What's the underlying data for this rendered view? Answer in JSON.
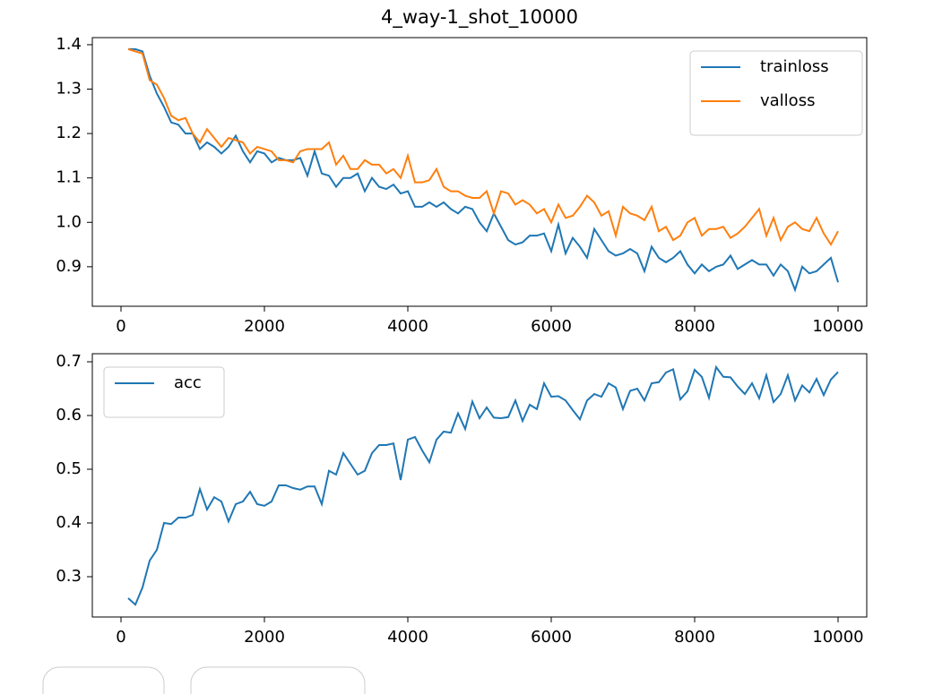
{
  "chart_data": [
    {
      "type": "line",
      "title": "4_way-1_shot_10000",
      "x": [
        100,
        200,
        300,
        400,
        500,
        600,
        700,
        800,
        900,
        1000,
        1100,
        1200,
        1300,
        1400,
        1500,
        1600,
        1700,
        1800,
        1900,
        2000,
        2100,
        2200,
        2300,
        2400,
        2500,
        2600,
        2700,
        2800,
        2900,
        3000,
        3100,
        3200,
        3300,
        3400,
        3500,
        3600,
        3700,
        3800,
        3900,
        4000,
        4100,
        4200,
        4300,
        4400,
        4500,
        4600,
        4700,
        4800,
        4900,
        5000,
        5100,
        5200,
        5300,
        5400,
        5500,
        5600,
        5700,
        5800,
        5900,
        6000,
        6100,
        6200,
        6300,
        6400,
        6500,
        6600,
        6700,
        6800,
        6900,
        7000,
        7100,
        7200,
        7300,
        7400,
        7500,
        7600,
        7700,
        7800,
        7900,
        8000,
        8100,
        8200,
        8300,
        8400,
        8500,
        8600,
        8700,
        8800,
        8900,
        9000,
        9100,
        9200,
        9300,
        9400,
        9500,
        9600,
        9700,
        9800,
        9900,
        10000
      ],
      "series": [
        {
          "name": "trainloss",
          "color": "#1f77b4",
          "values": [
            1.39,
            1.39,
            1.385,
            1.33,
            1.29,
            1.26,
            1.225,
            1.22,
            1.2,
            1.2,
            1.165,
            1.18,
            1.17,
            1.155,
            1.17,
            1.195,
            1.16,
            1.135,
            1.16,
            1.155,
            1.135,
            1.145,
            1.14,
            1.14,
            1.145,
            1.105,
            1.16,
            1.11,
            1.105,
            1.08,
            1.1,
            1.1,
            1.11,
            1.07,
            1.1,
            1.08,
            1.075,
            1.085,
            1.065,
            1.07,
            1.035,
            1.035,
            1.045,
            1.035,
            1.045,
            1.03,
            1.02,
            1.035,
            1.03,
            1.0,
            0.98,
            1.02,
            0.99,
            0.96,
            0.95,
            0.955,
            0.97,
            0.97,
            0.975,
            0.935,
            0.995,
            0.93,
            0.965,
            0.945,
            0.92,
            0.985,
            0.96,
            0.935,
            0.925,
            0.93,
            0.94,
            0.93,
            0.89,
            0.945,
            0.92,
            0.91,
            0.92,
            0.935,
            0.905,
            0.885,
            0.905,
            0.89,
            0.9,
            0.905,
            0.925,
            0.895,
            0.905,
            0.915,
            0.905,
            0.905,
            0.88,
            0.905,
            0.89,
            0.848,
            0.9,
            0.885,
            0.89,
            0.905,
            0.92,
            0.865
          ]
        },
        {
          "name": "valloss",
          "color": "#ff7f0e",
          "values": [
            1.39,
            1.385,
            1.38,
            1.32,
            1.31,
            1.28,
            1.24,
            1.23,
            1.235,
            1.2,
            1.18,
            1.21,
            1.19,
            1.17,
            1.19,
            1.185,
            1.18,
            1.155,
            1.17,
            1.165,
            1.16,
            1.14,
            1.14,
            1.135,
            1.16,
            1.165,
            1.165,
            1.165,
            1.18,
            1.13,
            1.15,
            1.12,
            1.12,
            1.14,
            1.13,
            1.13,
            1.11,
            1.12,
            1.1,
            1.15,
            1.09,
            1.09,
            1.095,
            1.12,
            1.08,
            1.07,
            1.07,
            1.06,
            1.055,
            1.055,
            1.07,
            1.02,
            1.07,
            1.065,
            1.04,
            1.05,
            1.04,
            1.02,
            1.03,
            1.0,
            1.04,
            1.01,
            1.015,
            1.035,
            1.06,
            1.045,
            1.015,
            1.025,
            0.97,
            1.035,
            1.02,
            1.015,
            1.005,
            1.035,
            0.98,
            0.99,
            0.96,
            0.97,
            1.0,
            1.01,
            0.97,
            0.985,
            0.985,
            0.99,
            0.965,
            0.975,
            0.99,
            1.01,
            1.03,
            0.97,
            1.01,
            0.96,
            0.99,
            1.0,
            0.985,
            0.98,
            1.01,
            0.975,
            0.95,
            0.98
          ]
        }
      ],
      "xlim": [
        -400,
        10400
      ],
      "xticks": [
        0,
        2000,
        4000,
        6000,
        8000,
        10000
      ],
      "ylim": [
        0.811,
        1.416
      ],
      "yticks": [
        0.9,
        {
          "value": 1,
          "label": "1.0"
        },
        1.1,
        1.2,
        1.3,
        1.4
      ],
      "legend": "upper right"
    },
    {
      "type": "line",
      "x": [
        100,
        200,
        300,
        400,
        500,
        600,
        700,
        800,
        900,
        1000,
        1100,
        1200,
        1300,
        1400,
        1500,
        1600,
        1700,
        1800,
        1900,
        2000,
        2100,
        2200,
        2300,
        2400,
        2500,
        2600,
        2700,
        2800,
        2900,
        3000,
        3100,
        3200,
        3300,
        3400,
        3500,
        3600,
        3700,
        3800,
        3900,
        4000,
        4100,
        4200,
        4300,
        4400,
        4500,
        4600,
        4700,
        4800,
        4900,
        5000,
        5100,
        5200,
        5300,
        5400,
        5500,
        5600,
        5700,
        5800,
        5900,
        6000,
        6100,
        6200,
        6300,
        6400,
        6500,
        6600,
        6700,
        6800,
        6900,
        7000,
        7100,
        7200,
        7300,
        7400,
        7500,
        7600,
        7700,
        7800,
        7900,
        8000,
        8100,
        8200,
        8300,
        8400,
        8500,
        8600,
        8700,
        8800,
        8900,
        9000,
        9100,
        9200,
        9300,
        9400,
        9500,
        9600,
        9700,
        9800,
        9900,
        10000
      ],
      "series": [
        {
          "name": "acc",
          "color": "#1f77b4",
          "values": [
            0.26,
            0.248,
            0.28,
            0.33,
            0.35,
            0.4,
            0.398,
            0.41,
            0.41,
            0.415,
            0.463,
            0.425,
            0.448,
            0.44,
            0.403,
            0.435,
            0.44,
            0.458,
            0.435,
            0.432,
            0.44,
            0.47,
            0.47,
            0.465,
            0.462,
            0.468,
            0.468,
            0.435,
            0.497,
            0.49,
            0.53,
            0.51,
            0.49,
            0.497,
            0.53,
            0.545,
            0.545,
            0.548,
            0.48,
            0.555,
            0.56,
            0.535,
            0.513,
            0.555,
            0.57,
            0.568,
            0.604,
            0.575,
            0.626,
            0.595,
            0.615,
            0.596,
            0.595,
            0.597,
            0.628,
            0.59,
            0.62,
            0.612,
            0.66,
            0.635,
            0.636,
            0.628,
            0.61,
            0.593,
            0.628,
            0.64,
            0.635,
            0.66,
            0.652,
            0.612,
            0.646,
            0.65,
            0.628,
            0.66,
            0.662,
            0.68,
            0.686,
            0.63,
            0.645,
            0.685,
            0.672,
            0.633,
            0.69,
            0.672,
            0.671,
            0.654,
            0.64,
            0.66,
            0.632,
            0.675,
            0.625,
            0.64,
            0.675,
            0.628,
            0.656,
            0.643,
            0.668,
            0.638,
            0.667,
            0.681
          ]
        }
      ],
      "xlim": [
        -400,
        10400
      ],
      "xticks": [
        0,
        2000,
        4000,
        6000,
        8000,
        10000
      ],
      "ylim": [
        0.225,
        0.715
      ],
      "yticks": [
        0.3,
        0.4,
        0.5,
        0.6,
        0.7
      ],
      "legend": "upper left"
    }
  ]
}
